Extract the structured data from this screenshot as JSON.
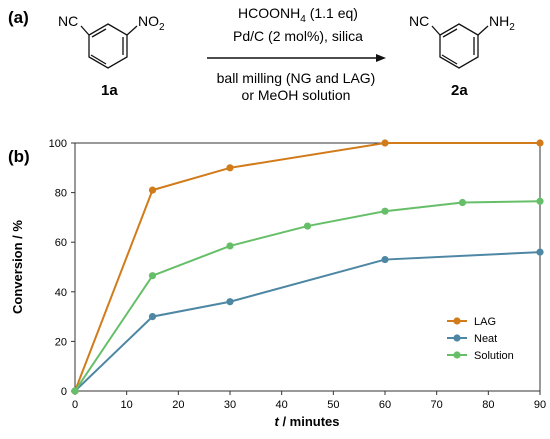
{
  "panel_a": {
    "label": "(a)",
    "reagent_line1_main": "HCOONH",
    "reagent_line1_sub": "4",
    "reagent_line1_rest": " (1.1 eq)",
    "reagent_line2": "Pd/C (2 mol%), silica",
    "condition_line1": "ball milling (NG and LAG)",
    "condition_line2": "or MeOH solution",
    "reactant": {
      "substituent_left": "NC",
      "substituent_right_main": "NO",
      "substituent_right_sub": "2",
      "compound_label": "1a"
    },
    "product": {
      "substituent_left": "NC",
      "substituent_right_main": "NH",
      "substituent_right_sub": "2",
      "compound_label": "2a"
    }
  },
  "panel_b": {
    "label": "(b)"
  },
  "chart_data": {
    "type": "line",
    "xlabel_italic": "t",
    "xlabel_rest": " / minutes",
    "ylabel": "Conversion / %",
    "xlim": [
      0,
      90
    ],
    "ylim": [
      0,
      100
    ],
    "xticks": [
      0,
      10,
      20,
      30,
      40,
      50,
      60,
      70,
      80,
      90
    ],
    "yticks": [
      0,
      20,
      40,
      60,
      80,
      100
    ],
    "grid": false,
    "legend_position": "lower-right",
    "series": [
      {
        "name": "LAG",
        "color": "#d17b1a",
        "x": [
          0,
          15,
          30,
          60,
          90
        ],
        "y": [
          0,
          81,
          90,
          100,
          100
        ]
      },
      {
        "name": "Neat",
        "color": "#4d87a3",
        "x": [
          0,
          15,
          30,
          60,
          90
        ],
        "y": [
          0,
          30,
          36,
          53,
          56
        ]
      },
      {
        "name": "Solution",
        "color": "#66bf68",
        "x": [
          0,
          15,
          30,
          45,
          60,
          75,
          90
        ],
        "y": [
          0,
          46.5,
          58.5,
          66.5,
          72.5,
          76,
          76.5
        ]
      }
    ]
  }
}
